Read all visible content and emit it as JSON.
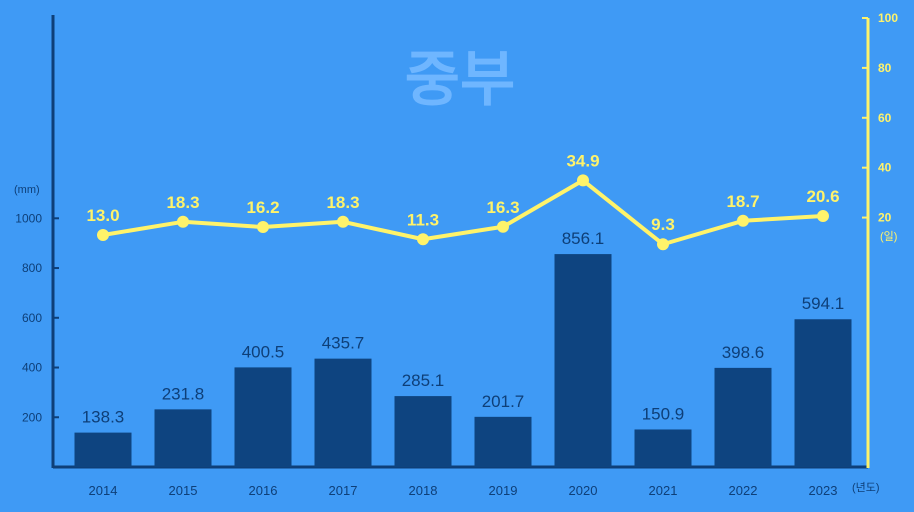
{
  "chart_data": {
    "type": "bar",
    "title": "중부",
    "categories": [
      "2014",
      "2015",
      "2016",
      "2017",
      "2018",
      "2019",
      "2020",
      "2021",
      "2022",
      "2023"
    ],
    "series": [
      {
        "type": "bar",
        "axis": "left",
        "values": [
          138.3,
          231.8,
          400.5,
          435.7,
          285.1,
          201.7,
          856.1,
          150.9,
          398.6,
          594.1
        ]
      },
      {
        "type": "line",
        "axis": "right",
        "values": [
          13.0,
          18.3,
          16.2,
          18.3,
          11.3,
          16.3,
          34.9,
          9.3,
          18.7,
          20.6
        ]
      }
    ],
    "y_left": {
      "unit": "(mm)",
      "ticks": [
        "200",
        "400",
        "600",
        "800",
        "1000"
      ],
      "range": [
        0,
        1000
      ]
    },
    "y_right": {
      "unit": "(일)",
      "ticks": [
        "20",
        "40",
        "60",
        "80",
        "100"
      ],
      "range": [
        -80,
        100
      ]
    },
    "x_unit": "(년도)",
    "colors": {
      "background": "#3f9af5",
      "bar": "#0e4480",
      "line": "#fff36a",
      "axis_left": "#0e3f78",
      "axis_right": "#fff36a",
      "title": "#6fb6ff"
    }
  }
}
